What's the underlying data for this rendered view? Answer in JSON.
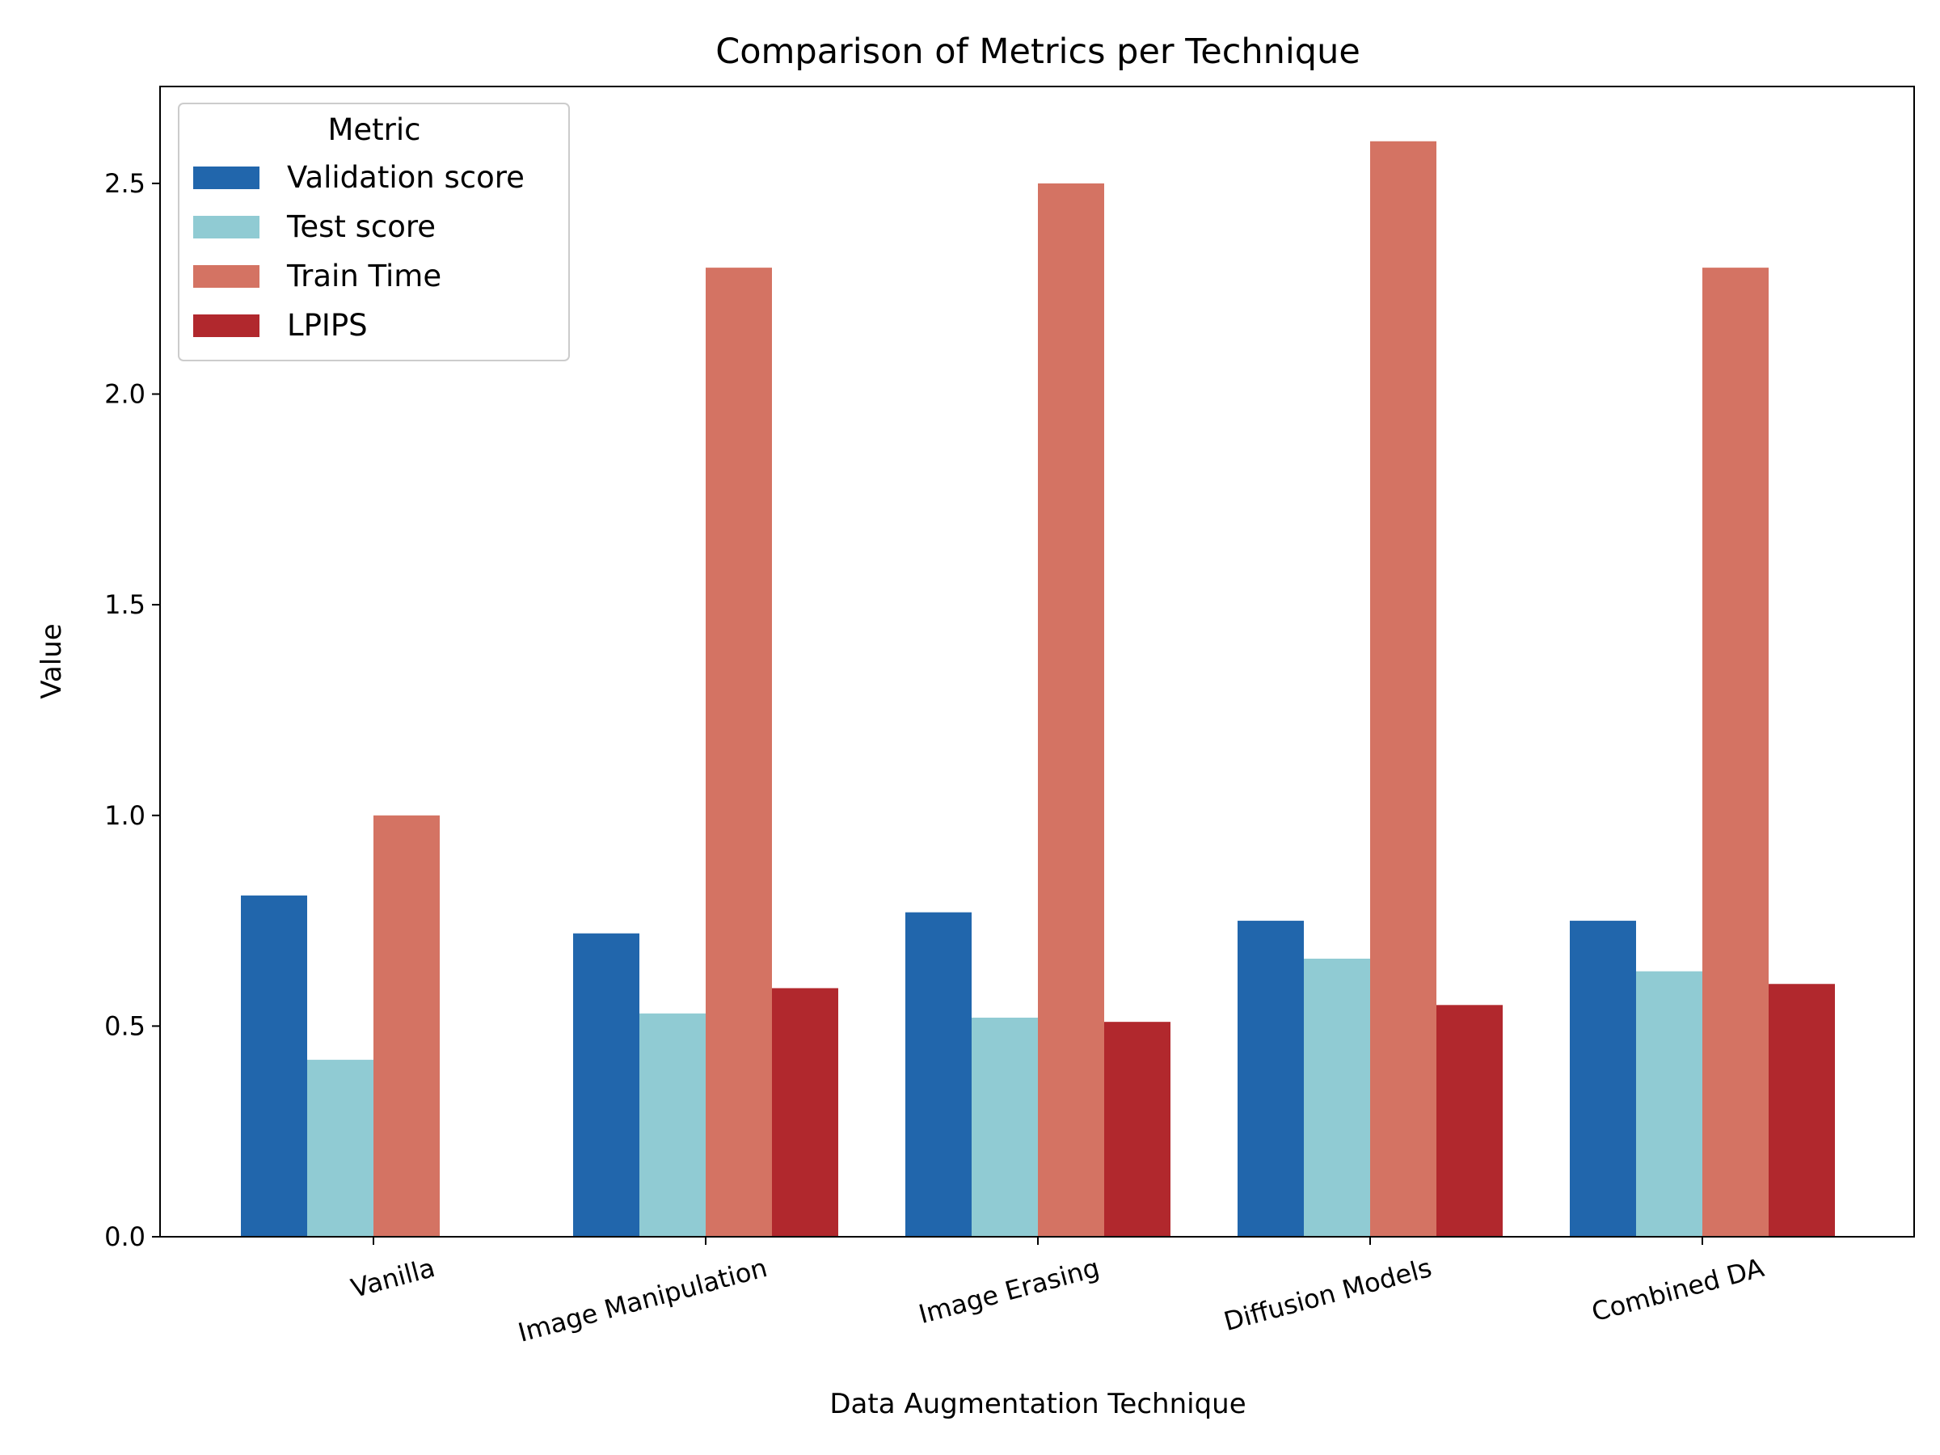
{
  "chart_data": {
    "type": "bar",
    "title": "Comparison of Metrics per Technique",
    "xlabel": "Data Augmentation Technique",
    "ylabel": "Value",
    "categories": [
      "Vanilla",
      "Image Manipulation",
      "Image Erasing",
      "Diffusion Models",
      "Combined DA"
    ],
    "series": [
      {
        "name": "Validation score",
        "color": "#2166ac",
        "values": [
          0.81,
          0.72,
          0.77,
          0.75,
          0.75
        ]
      },
      {
        "name": "Test score",
        "color": "#90cbd3",
        "values": [
          0.42,
          0.53,
          0.52,
          0.66,
          0.63
        ]
      },
      {
        "name": "Train Time",
        "color": "#d47363",
        "values": [
          1.0,
          2.3,
          2.5,
          2.6,
          2.3
        ]
      },
      {
        "name": "LPIPS",
        "color": "#b1282d",
        "values": [
          null,
          0.59,
          0.51,
          0.55,
          0.6
        ]
      }
    ],
    "ylim": [
      0,
      2.73
    ],
    "yticks": [
      "0.0",
      "0.5",
      "1.0",
      "1.5",
      "2.0",
      "2.5"
    ],
    "legend": {
      "title": "Metric",
      "position": "top-left"
    },
    "grid": false
  }
}
